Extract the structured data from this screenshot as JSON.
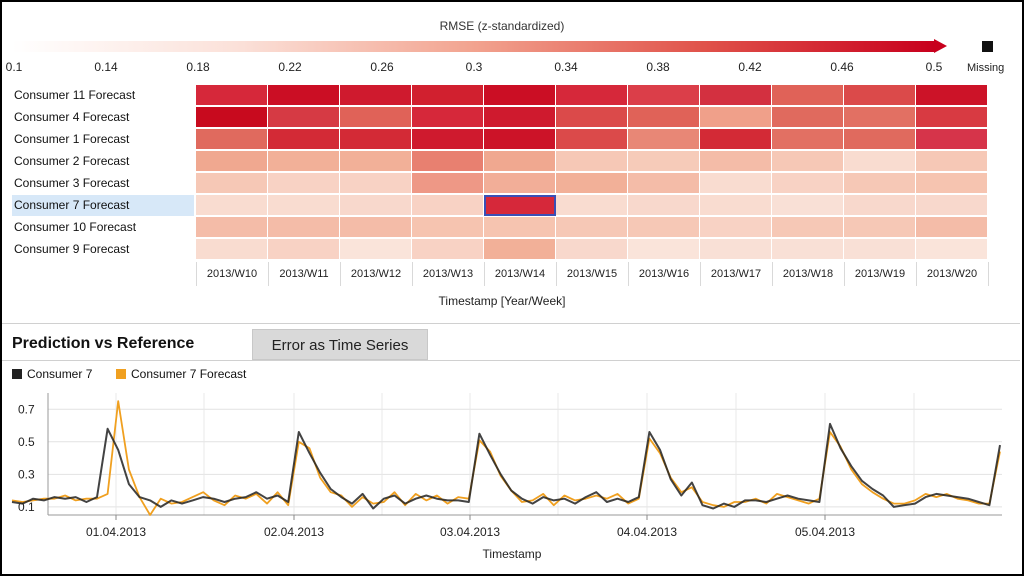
{
  "heatmap": {
    "legend_title": "RMSE (z-standardized)",
    "scale_ticks": [
      "0.1",
      "0.14",
      "0.18",
      "0.22",
      "0.26",
      "0.3",
      "0.34",
      "0.38",
      "0.42",
      "0.46",
      "0.5"
    ],
    "missing_label": "Missing",
    "x_title": "Timestamp [Year/Week]",
    "weeks": [
      "2013/W10",
      "2013/W11",
      "2013/W12",
      "2013/W13",
      "2013/W14",
      "2013/W15",
      "2013/W16",
      "2013/W17",
      "2013/W18",
      "2013/W19",
      "2013/W20"
    ],
    "rows": [
      {
        "label": "Consumer 11 Forecast",
        "colors": [
          "#d6283a",
          "#cb0e24",
          "#cf1a2e",
          "#d1202f",
          "#cb0e24",
          "#d6283a",
          "#db3e49",
          "#d33040",
          "#e06258",
          "#db4a4a",
          "#cc1328"
        ]
      },
      {
        "label": "Consumer 4 Forecast",
        "colors": [
          "#c80a1e",
          "#d63a44",
          "#e06258",
          "#d6283a",
          "#cf1a2e",
          "#db4a4a",
          "#e06258",
          "#f0a08a",
          "#e06a5e",
          "#e27063",
          "#d83a42"
        ]
      },
      {
        "label": "Consumer 1 Forecast",
        "colors": [
          "#e06a5e",
          "#d32a36",
          "#d32a36",
          "#cf1a2e",
          "#cc1328",
          "#db4a4a",
          "#e88776",
          "#d32a36",
          "#e27063",
          "#e06a5e",
          "#d6344a"
        ]
      },
      {
        "label": "Consumer 2 Forecast",
        "colors": [
          "#f0a890",
          "#f2b098",
          "#f2b098",
          "#e88070",
          "#f0a890",
          "#f6c8b6",
          "#f6cbb9",
          "#f4bca8",
          "#f6c8b6",
          "#f9dcd0",
          "#f6c8b6"
        ]
      },
      {
        "label": "Consumer 3 Forecast",
        "colors": [
          "#f6c8b6",
          "#f8d2c4",
          "#f8d2c4",
          "#ee9886",
          "#f2ae98",
          "#f2b098",
          "#f4bca8",
          "#f9dcd0",
          "#f8d2c4",
          "#f6c8b6",
          "#f6c4b0"
        ]
      },
      {
        "label": "Consumer 7 Forecast",
        "colors": [
          "#f9dcd0",
          "#f9dcd0",
          "#f8d8cc",
          "#f8d2c4",
          "#d6283a",
          "#f9dcd0",
          "#f8d8cc",
          "#f9dcd0",
          "#f9e0d6",
          "#f8d8cc",
          "#f8d8cc"
        ]
      },
      {
        "label": "Consumer 10 Forecast",
        "colors": [
          "#f4bca8",
          "#f4bca8",
          "#f4bca8",
          "#f6c4b0",
          "#f6c4b0",
          "#f6c8b6",
          "#f6c8b6",
          "#f8d2c4",
          "#f6c8b6",
          "#f6c8b6",
          "#f4bca8"
        ]
      },
      {
        "label": "Consumer 9 Forecast",
        "colors": [
          "#f9dcd0",
          "#f8d2c4",
          "#fae4da",
          "#f8d2c4",
          "#f2b098",
          "#f8d8cc",
          "#fae4da",
          "#f9e0d6",
          "#f9e0d6",
          "#f9e0d6",
          "#fae4da"
        ]
      }
    ],
    "selected_row": 5,
    "selected_col": 4
  },
  "tabs": {
    "active": "Prediction vs Reference",
    "inactive": "Error as Time Series"
  },
  "colors": {
    "reference": "#222222",
    "forecast": "#f0a020"
  },
  "chart_data": {
    "type": "line",
    "xlabel": "Timestamp",
    "x_ticks": [
      "01.04.2013",
      "02.04.2013",
      "03.04.2013",
      "04.04.2013",
      "05.04.2013"
    ],
    "y_ticks": [
      0.1,
      0.3,
      0.5,
      0.7
    ],
    "ylim": [
      0.05,
      0.8
    ],
    "grid": true,
    "series": [
      {
        "name": "Consumer 7",
        "values": [
          0.13,
          0.12,
          0.15,
          0.14,
          0.16,
          0.15,
          0.16,
          0.13,
          0.16,
          0.58,
          0.45,
          0.24,
          0.16,
          0.14,
          0.1,
          0.14,
          0.12,
          0.14,
          0.16,
          0.15,
          0.13,
          0.15,
          0.16,
          0.19,
          0.15,
          0.17,
          0.13,
          0.56,
          0.43,
          0.31,
          0.21,
          0.16,
          0.12,
          0.18,
          0.09,
          0.15,
          0.17,
          0.12,
          0.15,
          0.17,
          0.15,
          0.14,
          0.14,
          0.13,
          0.55,
          0.42,
          0.3,
          0.2,
          0.15,
          0.12,
          0.16,
          0.14,
          0.15,
          0.12,
          0.16,
          0.19,
          0.13,
          0.15,
          0.13,
          0.16,
          0.56,
          0.45,
          0.27,
          0.17,
          0.25,
          0.11,
          0.09,
          0.12,
          0.1,
          0.14,
          0.14,
          0.13,
          0.15,
          0.17,
          0.15,
          0.14,
          0.13,
          0.61,
          0.46,
          0.35,
          0.26,
          0.21,
          0.17,
          0.1,
          0.11,
          0.12,
          0.16,
          0.18,
          0.17,
          0.16,
          0.15,
          0.13,
          0.11,
          0.48
        ]
      },
      {
        "name": "Consumer 7 Forecast",
        "values": [
          0.14,
          0.13,
          0.14,
          0.15,
          0.15,
          0.17,
          0.14,
          0.15,
          0.15,
          0.18,
          0.75,
          0.33,
          0.16,
          0.05,
          0.15,
          0.12,
          0.13,
          0.16,
          0.19,
          0.14,
          0.11,
          0.17,
          0.15,
          0.18,
          0.12,
          0.19,
          0.11,
          0.5,
          0.46,
          0.28,
          0.19,
          0.17,
          0.1,
          0.16,
          0.12,
          0.13,
          0.19,
          0.11,
          0.18,
          0.14,
          0.17,
          0.12,
          0.16,
          0.15,
          0.51,
          0.44,
          0.29,
          0.2,
          0.13,
          0.14,
          0.18,
          0.11,
          0.17,
          0.14,
          0.15,
          0.17,
          0.15,
          0.18,
          0.12,
          0.15,
          0.52,
          0.43,
          0.28,
          0.19,
          0.22,
          0.13,
          0.11,
          0.1,
          0.13,
          0.13,
          0.15,
          0.12,
          0.18,
          0.16,
          0.14,
          0.12,
          0.15,
          0.56,
          0.47,
          0.33,
          0.24,
          0.19,
          0.15,
          0.12,
          0.12,
          0.14,
          0.18,
          0.16,
          0.18,
          0.15,
          0.14,
          0.12,
          0.12,
          0.44
        ]
      }
    ]
  }
}
